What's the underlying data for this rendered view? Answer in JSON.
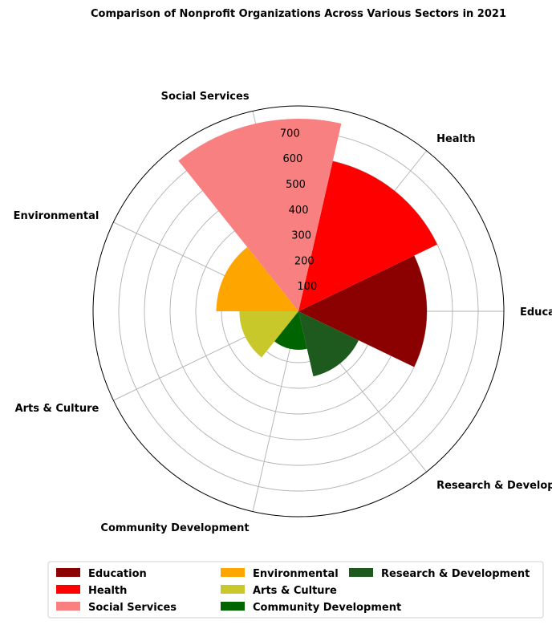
{
  "chart_data": {
    "type": "bar",
    "subtype": "polar",
    "title": "Comparison of Nonprofit Organizations Across Various Sectors in 2021",
    "categories": [
      "Education",
      "Health",
      "Social Services",
      "Environmental",
      "Arts & Culture",
      "Community Development",
      "Research & Development"
    ],
    "values": [
      500,
      600,
      750,
      320,
      230,
      150,
      260
    ],
    "colors": [
      "#8b0000",
      "#ff0000",
      "#f88080",
      "#ffa500",
      "#c8c82a",
      "#006400",
      "#1e5a1e"
    ],
    "radial_ticks": [
      "100",
      "200",
      "300",
      "400",
      "500",
      "600",
      "700"
    ],
    "rlim": [
      0,
      800
    ],
    "grid": true,
    "legend": {
      "placement": "bottom-center",
      "columns": 3,
      "items": [
        "Education",
        "Health",
        "Social Services",
        "Environmental",
        "Arts & Culture",
        "Community Development",
        "Research & Development"
      ]
    }
  }
}
